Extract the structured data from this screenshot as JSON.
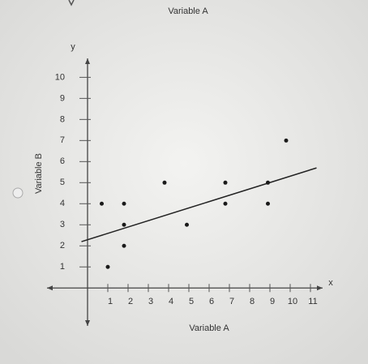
{
  "header_text": "Variable A",
  "chart_data": {
    "type": "scatter",
    "x_label": "Variable A",
    "y_label": "Variable B",
    "x_axis_name": "x",
    "y_axis_name": "y",
    "x": [
      0.7,
      1,
      1.8,
      1.8,
      1.8,
      3.8,
      4.9,
      6.8,
      6.8,
      8.9,
      8.9,
      9.8
    ],
    "y": [
      4,
      1,
      4,
      3,
      2,
      5,
      3,
      5,
      4,
      5,
      4,
      7
    ],
    "color": "#1a1a1a",
    "xlim": [
      -2,
      11.6
    ],
    "ylim": [
      -1.8,
      10.9
    ],
    "xticks": [
      1,
      2,
      3,
      4,
      5,
      6,
      7,
      8,
      9,
      10,
      11
    ],
    "yticks": [
      1,
      2,
      3,
      4,
      5,
      6,
      7,
      8,
      9,
      10
    ],
    "trend_line": {
      "x": [
        -0.3,
        11.3
      ],
      "y": [
        2.2,
        5.7
      ],
      "color": "#222"
    }
  }
}
